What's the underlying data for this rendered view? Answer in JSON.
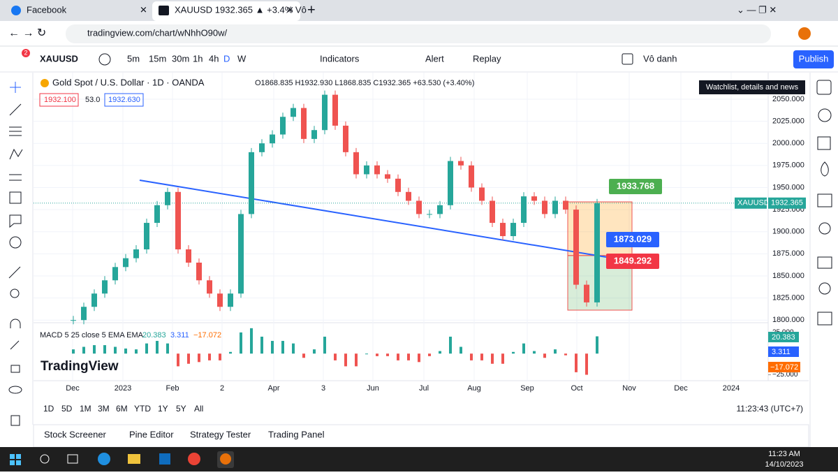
{
  "browser": {
    "tabs": [
      "Facebook",
      "XAUUSD 1932.365 ▲ +3.4% Vô"
    ],
    "url": "tradingview.com/chart/wNhhO90w/"
  },
  "toolbar": {
    "badge": "2",
    "symbol": "XAUUSD",
    "intervals": [
      "5m",
      "15m",
      "30m",
      "1h",
      "4h",
      "D",
      "W"
    ],
    "indicators": "Indicators",
    "alert": "Alert",
    "replay": "Replay",
    "layout": "Vô danh",
    "publish": "Publish"
  },
  "tooltip": "Watchlist, details and news",
  "legend": {
    "title": "Gold Spot / U.S. Dollar · 1D · OANDA",
    "ohlc": "O1868.835 H1932.930 L1868.835 C1932.365 +63.530 (+3.40%)",
    "bid": "1932.100",
    "spread": "53.0",
    "ask": "1932.630"
  },
  "chart_data": {
    "type": "candlestick",
    "symbol_tag": "XAUUSD",
    "last_label": "1932.365",
    "closes": [
      1800,
      1815,
      1830,
      1845,
      1860,
      1870,
      1880,
      1910,
      1930,
      1945,
      1880,
      1865,
      1845,
      1830,
      1815,
      1830,
      1920,
      1990,
      2000,
      2010,
      2030,
      2040,
      2005,
      2015,
      2055,
      2020,
      1990,
      1965,
      1975,
      1965,
      1960,
      1945,
      1935,
      1920,
      1920,
      1930,
      1980,
      1975,
      1950,
      1935,
      1910,
      1895,
      1910,
      1940,
      1935,
      1920,
      1935,
      1925,
      1840,
      1820,
      1932.365
    ],
    "ylim": [
      1797,
      2080
    ],
    "yticks": [
      {
        "value": 2050,
        "label": "2050.000"
      },
      {
        "value": 2025,
        "label": "2025.000"
      },
      {
        "value": 2000,
        "label": "2000.000"
      },
      {
        "value": 1975,
        "label": "1975.000"
      },
      {
        "value": 1950,
        "label": "1950.000"
      },
      {
        "value": 1925,
        "label": "1925.000"
      },
      {
        "value": 1900,
        "label": "1900.000"
      },
      {
        "value": 1875,
        "label": "1875.000"
      },
      {
        "value": 1850,
        "label": "1850.000"
      },
      {
        "value": 1825,
        "label": "1825.000"
      },
      {
        "value": 1800,
        "label": "1800.000"
      }
    ],
    "time_labels": [
      "Dec",
      "2023",
      "Feb",
      "2",
      "Apr",
      "3",
      "Jun",
      "Jul",
      "Aug",
      "Sep",
      "Oct",
      "Nov",
      "Dec",
      "2024"
    ],
    "position": {
      "target": 1933.768,
      "entry": 1873.029,
      "stop": 1849.292
    },
    "macd": {
      "title": "MACD 5 25 close 5 EMA EMA",
      "macd_label": "20.383",
      "signal_label": "3.311",
      "hist_label": "−17.072",
      "values": [
        5,
        8,
        10,
        10,
        8,
        6,
        5,
        12,
        15,
        12,
        -15,
        -12,
        -10,
        -8,
        -8,
        2,
        25,
        30,
        20,
        15,
        15,
        12,
        -5,
        5,
        20,
        -8,
        -15,
        -15,
        0,
        -3,
        -3,
        -8,
        -8,
        -10,
        -3,
        3,
        20,
        8,
        -8,
        -8,
        -12,
        -12,
        2,
        12,
        3,
        -5,
        5,
        -2,
        -22,
        -25,
        20.383
      ],
      "ylim": [
        -32,
        34
      ],
      "yticks": [
        {
          "value": 25,
          "label": "25.000"
        },
        {
          "value": -25,
          "label": "−25.000"
        }
      ]
    }
  },
  "ranges": [
    "1D",
    "5D",
    "1M",
    "3M",
    "6M",
    "YTD",
    "1Y",
    "5Y",
    "All"
  ],
  "clock": "11:23:43 (UTC+7)",
  "watermark": "TradingView",
  "panels": [
    "Stock Screener",
    "Pine Editor",
    "Strategy Tester",
    "Trading Panel"
  ],
  "taskbar": {
    "time": "11:23 AM",
    "date": "14/10/2023"
  }
}
